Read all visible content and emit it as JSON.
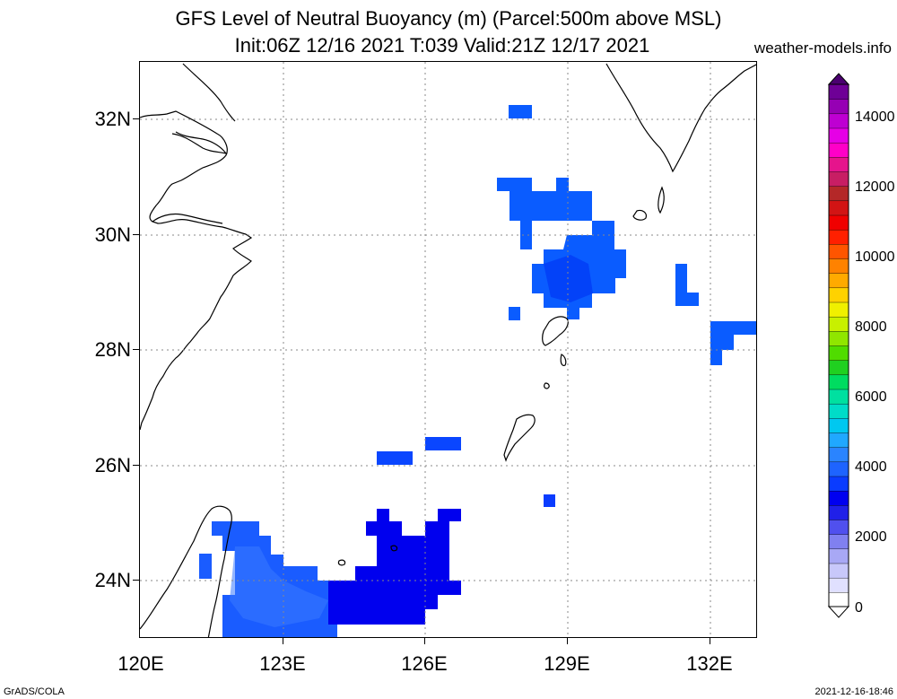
{
  "header": {
    "title_line1": "GFS Level of Neutral Buoyancy (m) (Parcel:500m above MSL)",
    "title_line2": "Init:06Z 12/16 2021 T:039 Valid:21Z 12/17 2021",
    "source": "weather-models.info"
  },
  "footer": {
    "credit": "GrADS/COLA",
    "timestamp": "2021-12-16-18:46"
  },
  "map": {
    "lat_labels": [
      "32N",
      "30N",
      "28N",
      "26N",
      "24N"
    ],
    "lon_labels": [
      "120E",
      "123E",
      "126E",
      "129E",
      "132E"
    ],
    "grid_style": "dotted"
  },
  "colorbar": {
    "labels": [
      "0",
      "2000",
      "4000",
      "6000",
      "8000",
      "10000",
      "12000",
      "14000"
    ],
    "colors": [
      "#ffffff",
      "#e0e0ff",
      "#c8c8fa",
      "#a8a8f5",
      "#8080f0",
      "#5050ee",
      "#2020e8",
      "#0000f0",
      "#0a3cff",
      "#1e64ff",
      "#2a84ff",
      "#20a8ff",
      "#00c8f0",
      "#00dcc8",
      "#00e0a0",
      "#00dc60",
      "#20d020",
      "#50dc00",
      "#90e600",
      "#c8f000",
      "#f0f000",
      "#ffd200",
      "#ffaa00",
      "#ff8200",
      "#ff5500",
      "#ff2000",
      "#f00000",
      "#d21414",
      "#b42828",
      "#c81e64",
      "#e6148c",
      "#ff00c8",
      "#e600e6",
      "#be00d2",
      "#9600b4",
      "#6e0096"
    ]
  },
  "legend_colors": {
    "deep_blue": "#0000ee",
    "mid_blue": "#0040ff",
    "light_blue": "#0a5cff",
    "sky_blue": "#2a7aff"
  }
}
